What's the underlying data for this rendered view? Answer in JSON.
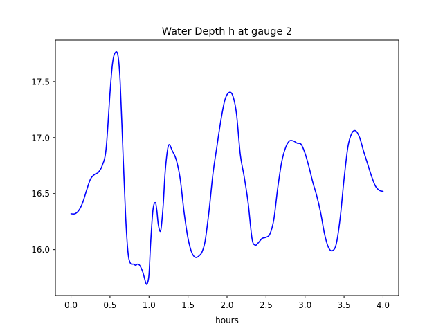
{
  "chart_data": {
    "type": "line",
    "title": "Water Depth h at gauge 2",
    "xlabel": "hours",
    "ylabel": "",
    "xlim": [
      -0.2,
      4.2
    ],
    "ylim": [
      15.59,
      17.87
    ],
    "xticks": [
      0.0,
      0.5,
      1.0,
      1.5,
      2.0,
      2.5,
      3.0,
      3.5,
      4.0
    ],
    "xtick_labels": [
      "0.0",
      "0.5",
      "1.0",
      "1.5",
      "2.0",
      "2.5",
      "3.0",
      "3.5",
      "4.0"
    ],
    "yticks": [
      16.0,
      16.5,
      17.0,
      17.5
    ],
    "ytick_labels": [
      "16.0",
      "16.5",
      "17.0",
      "17.5"
    ],
    "grid": false,
    "line_color": "#0000ff",
    "series": [
      {
        "x": [
          0.0,
          0.05,
          0.1,
          0.15,
          0.2,
          0.25,
          0.3,
          0.35,
          0.4,
          0.45,
          0.5,
          0.53,
          0.56,
          0.6,
          0.63,
          0.67,
          0.7,
          0.73,
          0.76,
          0.8,
          0.83,
          0.85,
          0.88,
          0.92,
          0.96,
          0.98,
          1.0,
          1.02,
          1.05,
          1.08,
          1.1,
          1.12,
          1.15,
          1.18,
          1.21,
          1.25,
          1.3,
          1.35,
          1.4,
          1.45,
          1.5,
          1.55,
          1.6,
          1.65,
          1.68,
          1.72,
          1.77,
          1.82,
          1.87,
          1.92,
          1.97,
          2.02,
          2.07,
          2.12,
          2.17,
          2.22,
          2.27,
          2.32,
          2.36,
          2.4,
          2.45,
          2.5,
          2.55,
          2.6,
          2.65,
          2.7,
          2.75,
          2.8,
          2.85,
          2.9,
          2.95,
          3.0,
          3.05,
          3.1,
          3.15,
          3.2,
          3.25,
          3.3,
          3.35,
          3.4,
          3.45,
          3.5,
          3.55,
          3.6,
          3.65,
          3.7,
          3.75,
          3.8,
          3.85,
          3.9,
          3.95,
          4.0
        ],
        "y": [
          16.32,
          16.32,
          16.35,
          16.42,
          16.53,
          16.63,
          16.67,
          16.69,
          16.75,
          16.9,
          17.4,
          17.65,
          17.75,
          17.74,
          17.5,
          16.8,
          16.3,
          15.98,
          15.88,
          15.87,
          15.86,
          15.87,
          15.86,
          15.8,
          15.7,
          15.7,
          15.78,
          16.05,
          16.35,
          16.42,
          16.35,
          16.22,
          16.17,
          16.38,
          16.72,
          16.93,
          16.88,
          16.8,
          16.63,
          16.33,
          16.1,
          15.97,
          15.93,
          15.95,
          15.98,
          16.08,
          16.35,
          16.68,
          16.92,
          17.15,
          17.33,
          17.4,
          17.38,
          17.22,
          16.85,
          16.65,
          16.42,
          16.1,
          16.04,
          16.06,
          16.1,
          16.11,
          16.14,
          16.27,
          16.55,
          16.78,
          16.91,
          16.97,
          16.97,
          16.95,
          16.94,
          16.86,
          16.74,
          16.6,
          16.48,
          16.33,
          16.14,
          16.02,
          15.99,
          16.05,
          16.28,
          16.63,
          16.92,
          17.04,
          17.06,
          17.0,
          16.88,
          16.77,
          16.66,
          16.57,
          16.53,
          16.52
        ]
      }
    ]
  }
}
